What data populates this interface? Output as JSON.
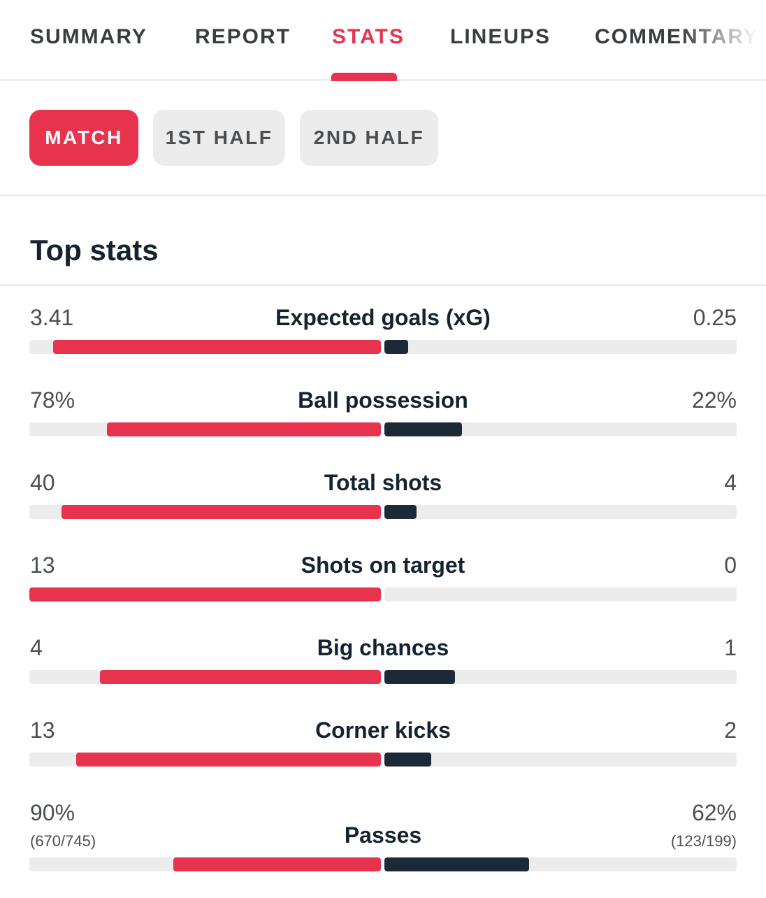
{
  "tabs": [
    {
      "label": "SUMMARY",
      "active": false
    },
    {
      "label": "REPORT",
      "active": false
    },
    {
      "label": "STATS",
      "active": true
    },
    {
      "label": "LINEUPS",
      "active": false
    },
    {
      "label": "COMMENTARY",
      "active": false
    }
  ],
  "periods": [
    {
      "label": "MATCH",
      "active": true
    },
    {
      "label": "1ST HALF",
      "active": false
    },
    {
      "label": "2ND HALF",
      "active": false
    }
  ],
  "section_title": "Top stats",
  "colors": {
    "home": "#e8334f",
    "away": "#1b2a36",
    "track": "#ececec",
    "accent": "#e8334f"
  },
  "stats": [
    {
      "label": "Expected goals (xG)",
      "home": "3.41",
      "away": "0.25",
      "home_share": 0.932,
      "away_share": 0.068
    },
    {
      "label": "Ball possession",
      "home": "78%",
      "away": "22%",
      "home_share": 0.78,
      "away_share": 0.22
    },
    {
      "label": "Total shots",
      "home": "40",
      "away": "4",
      "home_share": 0.909,
      "away_share": 0.091
    },
    {
      "label": "Shots on target",
      "home": "13",
      "away": "0",
      "home_share": 1.0,
      "away_share": 0.0
    },
    {
      "label": "Big chances",
      "home": "4",
      "away": "1",
      "home_share": 0.8,
      "away_share": 0.2
    },
    {
      "label": "Corner kicks",
      "home": "13",
      "away": "2",
      "home_share": 0.867,
      "away_share": 0.133
    },
    {
      "label": "Passes",
      "home": "90%",
      "away": "62%",
      "home_sub": "(670/745)",
      "away_sub": "(123/199)",
      "home_share": 0.59,
      "away_share": 0.41
    }
  ]
}
